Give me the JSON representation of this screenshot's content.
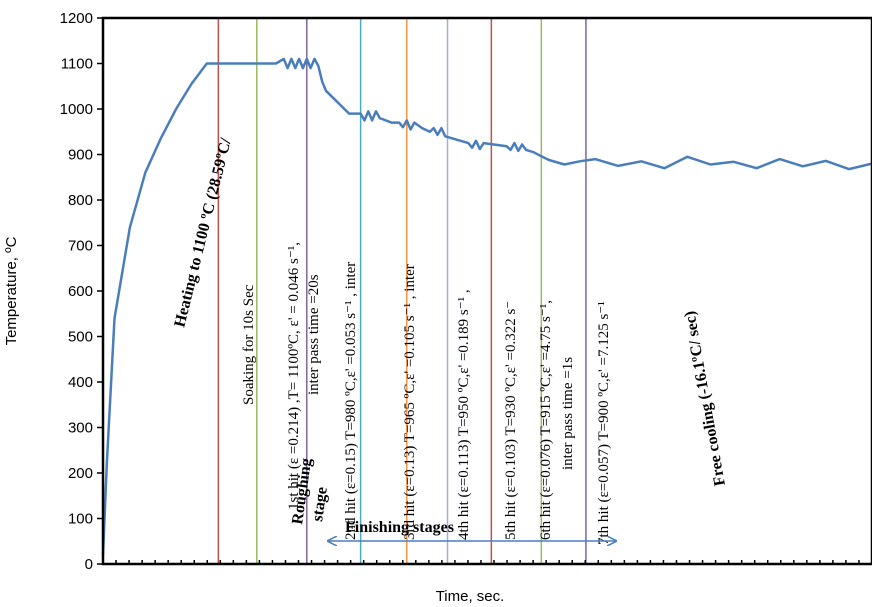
{
  "chart_data": {
    "type": "line",
    "xlabel": "Time,  sec.",
    "ylabel": "Temperature, ºC",
    "ylim": [
      0,
      1200
    ],
    "yticks": [
      "0",
      "100",
      "200",
      "300",
      "400",
      "500",
      "600",
      "700",
      "800",
      "900",
      "1000",
      "1100",
      "1200"
    ],
    "x_tick_labels": "none",
    "grid": false,
    "line_color": "#4a7ebb",
    "series": [
      {
        "x": [
          0,
          0.5,
          1.5,
          3.5,
          5.5,
          7.5,
          9.5,
          11.5,
          13.5,
          14.5,
          15.5,
          17,
          19,
          21,
          22.5,
          23.5,
          24,
          24.5,
          25,
          25.5,
          26,
          26.5,
          27,
          27.5,
          28,
          28.5,
          29,
          32,
          33.5,
          34,
          34.5,
          35,
          35.5,
          36,
          37.5,
          38.5,
          39,
          39.5,
          40,
          40.5,
          41.5,
          42.5,
          43,
          43.5,
          44,
          44.5,
          47.5,
          48,
          48.5,
          49,
          49.5,
          52.5,
          53,
          53.5,
          54,
          54.5,
          55,
          56,
          57,
          58,
          60,
          62,
          64,
          67,
          70,
          73,
          76,
          79,
          82,
          85,
          88,
          91,
          94,
          97,
          100
        ],
        "y": [
          20,
          220,
          540,
          740,
          860,
          935,
          1000,
          1055,
          1100,
          1100,
          1100,
          1100,
          1100,
          1100,
          1100,
          1110,
          1090,
          1110,
          1090,
          1110,
          1090,
          1110,
          1090,
          1110,
          1095,
          1060,
          1040,
          990,
          990,
          975,
          995,
          975,
          995,
          980,
          970,
          970,
          960,
          975,
          955,
          970,
          958,
          950,
          958,
          943,
          958,
          940,
          925,
          915,
          930,
          912,
          925,
          918,
          910,
          925,
          908,
          922,
          910,
          905,
          896,
          888,
          878,
          885,
          890,
          875,
          885,
          870,
          895,
          878,
          884,
          870,
          890,
          874,
          886,
          868,
          880
        ]
      }
    ],
    "xlim": [
      0,
      100
    ],
    "vertical_lines": [
      {
        "x": 15.0,
        "color": "#c0504d"
      },
      {
        "x": 20.0,
        "color": "#9bbb59"
      },
      {
        "x": 26.5,
        "color": "#8064a2"
      },
      {
        "x": 33.5,
        "color": "#4bacc6"
      },
      {
        "x": 39.5,
        "color": "#f79646"
      },
      {
        "x": 44.8,
        "color": "#9fb0d4"
      },
      {
        "x": 50.5,
        "color": "#c0504d"
      },
      {
        "x": 57.0,
        "color": "#9bbb59"
      },
      {
        "x": 62.8,
        "color": "#8064a2"
      }
    ],
    "annotations": {
      "heating": "Heating  to 1100 ºC (28.59ºC/",
      "soaking": "Soaking  for 10s Sec",
      "hit1_line1": "1st hit (ε =0.214) ,T= 1100ºC, ε' = 0.046 s⁻¹,",
      "hit1_line2": "inter pass time =20s",
      "hit2": "2nd hit  (ε=0.15) T=980 ºC,ε' =0.053 s⁻¹ , inter",
      "hit3": "3rd hit  (ε=0.13) T=965 ºC,ε' =0.105 s⁻¹ , inter",
      "hit4": "4th hit  (ε=0.113) T=950 ºC,ε' =0.189 s⁻¹ ,",
      "hit5": "5th hit  (ε=0.103) T=930 ºC,ε' =0.322 s⁻",
      "hit6_line1": "6th hit  (ε=0.076) T=915 ºC,ε' =4.75 s⁻¹,",
      "hit6_line2": "inter pass time =1s",
      "hit7": "7th hit  (ε=0.057) T=900 ºC,ε' =7.125 s⁻¹",
      "roughing_line1": "Roughing",
      "roughing_line2": "stage",
      "finishing": "Finishing stages",
      "free_cooling": "Free cooling (-16.1ºC/ sec)"
    }
  }
}
